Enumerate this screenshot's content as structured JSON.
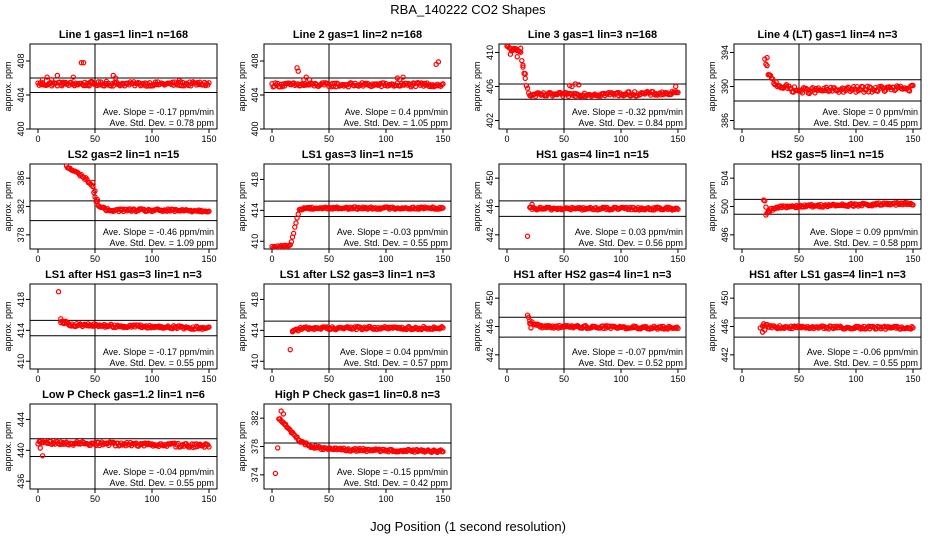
{
  "figure": {
    "title": "RBA_140222  CO2 Shapes",
    "xlabel": "Jog Position (1 second resolution)",
    "ylabel": "approx. ppm",
    "marker_color": "#ff0000"
  },
  "chart_data": [
    {
      "type": "scatter",
      "title": "Line 1 gas=1 lin=1 n=168",
      "xlim": [
        0,
        150
      ],
      "xticks": [
        0,
        50,
        100,
        150
      ],
      "ylim": [
        400,
        410
      ],
      "yticks": [
        400,
        404,
        408
      ],
      "hlines": [
        406.0,
        404.3
      ],
      "vline": 50,
      "slope_text": "Ave. Slope = -0.17  ppm/min",
      "std_text": "Ave. Std. Dev. = 0.78  ppm",
      "profile": {
        "settle": 405.3,
        "noise": 0.25,
        "trans": [
          [
            0,
            405.3
          ],
          [
            150,
            405.3
          ]
        ],
        "outliers": [
          [
            4,
            405.8
          ],
          [
            8,
            406.1
          ],
          [
            12,
            405.8
          ],
          [
            17,
            406.3
          ],
          [
            22,
            405.5
          ],
          [
            31,
            406.1
          ],
          [
            38,
            407.8
          ],
          [
            40,
            407.8
          ],
          [
            44,
            405.2
          ],
          [
            47,
            405.6
          ],
          [
            60,
            405.6
          ],
          [
            66,
            406.3
          ],
          [
            68,
            406.0
          ],
          [
            124,
            405.7
          ]
        ]
      }
    },
    {
      "type": "scatter",
      "title": "Line 2 gas=1 lin=2 n=168",
      "xlim": [
        0,
        150
      ],
      "xticks": [
        0,
        50,
        100,
        150
      ],
      "ylim": [
        400,
        410
      ],
      "yticks": [
        400,
        404,
        408
      ],
      "hlines": [
        406.0,
        404.3
      ],
      "vline": 50,
      "slope_text": "Ave. Slope = 0.4  ppm/min",
      "std_text": "Ave. Std. Dev. = 1.05  ppm",
      "profile": {
        "settle": 405.2,
        "noise": 0.25,
        "trans": [
          [
            0,
            405.2
          ],
          [
            150,
            405.2
          ]
        ],
        "outliers": [
          [
            22,
            407.2
          ],
          [
            23,
            406.8
          ],
          [
            28,
            405.8
          ],
          [
            30,
            406.1
          ],
          [
            33,
            405.8
          ],
          [
            110,
            406.0
          ],
          [
            112,
            405.8
          ],
          [
            115,
            406.1
          ],
          [
            144,
            407.6
          ],
          [
            146,
            407.9
          ]
        ]
      }
    },
    {
      "type": "scatter",
      "title": "Line 3 gas=1 lin=3 n=168",
      "xlim": [
        0,
        150
      ],
      "xticks": [
        0,
        50,
        100,
        150
      ],
      "ylim": [
        401,
        411
      ],
      "yticks": [
        402,
        406,
        410
      ],
      "hlines": [
        406.3,
        404.5
      ],
      "vline": 50,
      "slope_text": "Ave. Slope = -0.32  ppm/min",
      "std_text": "Ave. Std. Dev. = 0.84  ppm",
      "profile": {
        "settle": 405.2,
        "noise": 0.25,
        "trans": [
          [
            0,
            410.6
          ],
          [
            12,
            410.0
          ],
          [
            16,
            407.0
          ],
          [
            19,
            405.0
          ],
          [
            22,
            405.0
          ],
          [
            150,
            405.2
          ]
        ],
        "outliers": [
          [
            3,
            409.8
          ],
          [
            6,
            410.3
          ],
          [
            9,
            409.5
          ],
          [
            12,
            410.5
          ],
          [
            14,
            408.5
          ],
          [
            16,
            407.5
          ],
          [
            55,
            406.1
          ],
          [
            57,
            406.0
          ],
          [
            60,
            406.3
          ],
          [
            63,
            406.2
          ],
          [
            148,
            406.0
          ]
        ]
      }
    },
    {
      "type": "scatter",
      "title": "Line 4 (LT) gas=1 lin=4 n=3",
      "xlim": [
        0,
        150
      ],
      "xticks": [
        0,
        50,
        100,
        150
      ],
      "ylim": [
        385,
        395
      ],
      "yticks": [
        386,
        390,
        394
      ],
      "hlines": [
        390.8,
        388.3
      ],
      "vline": 50,
      "slope_text": "Ave. Slope = 0  ppm/min",
      "std_text": "Ave. Std. Dev. = 0.45  ppm",
      "profile": {
        "settle": 389.5,
        "noise": 0.35,
        "trans": [
          [
            20,
            393.0
          ],
          [
            24,
            391.2
          ],
          [
            28,
            390.5
          ],
          [
            35,
            390.0
          ],
          [
            50,
            389.5
          ],
          [
            150,
            389.8
          ]
        ],
        "outliers": [
          [
            22,
            393.4
          ]
        ]
      }
    },
    {
      "type": "scatter",
      "title": "LS2 gas=2 lin=1 n=15",
      "xlim": [
        0,
        150
      ],
      "xticks": [
        0,
        50,
        100,
        150
      ],
      "ylim": [
        376,
        388
      ],
      "yticks": [
        378,
        382,
        386
      ],
      "hlines": [
        382.8,
        380.0
      ],
      "vline": 50,
      "slope_text": "Ave. Slope = -0.46  ppm/min",
      "std_text": "Ave. Std. Dev. = 1.09  ppm",
      "profile": {
        "settle": 381.4,
        "noise": 0.2,
        "trans": [
          [
            25,
            387.6
          ],
          [
            38,
            386.4
          ],
          [
            44,
            385.6
          ],
          [
            48,
            384.8
          ],
          [
            50,
            383.2
          ],
          [
            54,
            382.0
          ],
          [
            60,
            381.5
          ],
          [
            150,
            381.4
          ]
        ],
        "outliers": [
          [
            48,
            385.4
          ],
          [
            50,
            384.2
          ],
          [
            52,
            383.0
          ]
        ]
      }
    },
    {
      "type": "scatter",
      "title": "LS1 gas=3 lin=1 n=15",
      "xlim": [
        0,
        150
      ],
      "xticks": [
        0,
        50,
        100,
        150
      ],
      "ylim": [
        409,
        420
      ],
      "yticks": [
        410,
        414,
        418
      ],
      "hlines": [
        415.2,
        413.2
      ],
      "vline": 50,
      "slope_text": "Ave. Slope = -0.03  ppm/min",
      "std_text": "Ave. Std. Dev. = 0.55  ppm",
      "profile": {
        "settle": 414.3,
        "noise": 0.15,
        "trans": [
          [
            0,
            409.2
          ],
          [
            16,
            409.4
          ],
          [
            18,
            410.5
          ],
          [
            21,
            412.5
          ],
          [
            24,
            414.0
          ],
          [
            28,
            414.3
          ],
          [
            150,
            414.3
          ]
        ],
        "outliers": []
      }
    },
    {
      "type": "scatter",
      "title": "HS1 gas=4 lin=1 n=15",
      "xlim": [
        0,
        150
      ],
      "xticks": [
        0,
        50,
        100,
        150
      ],
      "ylim": [
        440,
        452
      ],
      "yticks": [
        442,
        446,
        450
      ],
      "hlines": [
        446.8,
        444.6
      ],
      "vline": 50,
      "slope_text": "Ave. Slope = 0.03  ppm/min",
      "std_text": "Ave. Std. Dev. = 0.56  ppm",
      "profile": {
        "settle": 445.7,
        "noise": 0.2,
        "trans": [
          [
            20,
            445.7
          ],
          [
            150,
            445.7
          ]
        ],
        "outliers": [
          [
            18,
            441.8
          ],
          [
            22,
            446.3
          ]
        ]
      }
    },
    {
      "type": "scatter",
      "title": "HS2 gas=5 lin=1 n=15",
      "xlim": [
        0,
        150
      ],
      "xticks": [
        0,
        50,
        100,
        150
      ],
      "ylim": [
        494,
        506
      ],
      "yticks": [
        496,
        500,
        504
      ],
      "hlines": [
        501.0,
        498.9
      ],
      "vline": 50,
      "slope_text": "Ave. Slope = 0.09  ppm/min",
      "std_text": "Ave. Std. Dev. = 0.58  ppm",
      "profile": {
        "settle": 500.2,
        "noise": 0.2,
        "trans": [
          [
            20,
            500.6
          ],
          [
            22,
            499.0
          ],
          [
            25,
            499.5
          ],
          [
            35,
            500.0
          ],
          [
            150,
            500.4
          ]
        ],
        "outliers": [
          [
            19,
            500.9
          ],
          [
            21,
            498.8
          ],
          [
            23,
            499.3
          ]
        ]
      }
    },
    {
      "type": "scatter",
      "title": "LS1 after HS1 gas=3 lin=1 n=3",
      "xlim": [
        0,
        150
      ],
      "xticks": [
        0,
        50,
        100,
        150
      ],
      "ylim": [
        409,
        420
      ],
      "yticks": [
        410,
        414,
        418
      ],
      "hlines": [
        415.3,
        413.3
      ],
      "vline": 50,
      "slope_text": "Ave. Slope = -0.17  ppm/min",
      "std_text": "Ave. Std. Dev. = 0.55  ppm",
      "profile": {
        "settle": 414.4,
        "noise": 0.2,
        "trans": [
          [
            20,
            415.2
          ],
          [
            30,
            414.7
          ],
          [
            150,
            414.3
          ]
        ],
        "outliers": [
          [
            18,
            419.0
          ],
          [
            20,
            415.5
          ],
          [
            22,
            415.0
          ],
          [
            25,
            415.1
          ]
        ]
      }
    },
    {
      "type": "scatter",
      "title": "LS1 after LS2 gas=3 lin=1 n=3",
      "xlim": [
        0,
        150
      ],
      "xticks": [
        0,
        50,
        100,
        150
      ],
      "ylim": [
        409,
        420
      ],
      "yticks": [
        410,
        414,
        418
      ],
      "hlines": [
        415.2,
        413.2
      ],
      "vline": 50,
      "slope_text": "Ave. Slope = 0.04  ppm/min",
      "std_text": "Ave. Std. Dev. = 0.57  ppm",
      "profile": {
        "settle": 414.3,
        "noise": 0.2,
        "trans": [
          [
            18,
            414.0
          ],
          [
            30,
            414.3
          ],
          [
            150,
            414.3
          ]
        ],
        "outliers": [
          [
            16,
            411.5
          ],
          [
            18,
            413.9
          ]
        ]
      }
    },
    {
      "type": "scatter",
      "title": "HS1 after HS2 gas=4 lin=1 n=3",
      "xlim": [
        0,
        150
      ],
      "xticks": [
        0,
        50,
        100,
        150
      ],
      "ylim": [
        440,
        452
      ],
      "yticks": [
        442,
        446,
        450
      ],
      "hlines": [
        447.3,
        444.5
      ],
      "vline": 50,
      "slope_text": "Ave. Slope = -0.07  ppm/min",
      "std_text": "Ave. Std. Dev. = 0.52  ppm",
      "profile": {
        "settle": 445.8,
        "noise": 0.2,
        "trans": [
          [
            20,
            446.6
          ],
          [
            30,
            446.0
          ],
          [
            150,
            445.8
          ]
        ],
        "outliers": [
          [
            18,
            447.6
          ],
          [
            19,
            447.3
          ],
          [
            20,
            446.8
          ],
          [
            21,
            445.8
          ]
        ]
      }
    },
    {
      "type": "scatter",
      "title": "HS1 after LS1 gas=4 lin=1 n=3",
      "xlim": [
        0,
        150
      ],
      "xticks": [
        0,
        50,
        100,
        150
      ],
      "ylim": [
        440,
        452
      ],
      "yticks": [
        442,
        446,
        450
      ],
      "hlines": [
        447.2,
        444.5
      ],
      "vline": 50,
      "slope_text": "Ave. Slope = -0.06  ppm/min",
      "std_text": "Ave. Std. Dev. = 0.55  ppm",
      "profile": {
        "settle": 445.8,
        "noise": 0.2,
        "trans": [
          [
            18,
            446.2
          ],
          [
            30,
            445.9
          ],
          [
            150,
            445.8
          ]
        ],
        "outliers": [
          [
            16,
            445.8
          ],
          [
            18,
            445.2
          ],
          [
            20,
            445.5
          ]
        ]
      }
    },
    {
      "type": "scatter",
      "title": "Low P Check gas=1.2 lin=1 n=6",
      "xlim": [
        0,
        150
      ],
      "xticks": [
        0,
        50,
        100,
        150
      ],
      "ylim": [
        435,
        446
      ],
      "yticks": [
        436,
        440,
        444
      ],
      "hlines": [
        441.5,
        439.2
      ],
      "vline": 50,
      "slope_text": "Ave. Slope = -0.04  ppm/min",
      "std_text": "Ave. Std. Dev. = 0.55  ppm",
      "profile": {
        "settle": 440.8,
        "noise": 0.25,
        "trans": [
          [
            0,
            441.0
          ],
          [
            80,
            440.8
          ],
          [
            150,
            440.6
          ]
        ],
        "outliers": [
          [
            2,
            440.3
          ],
          [
            4,
            439.3
          ]
        ]
      }
    },
    {
      "type": "scatter",
      "title": "High P Check gas=1 lin=0.8 n=3",
      "xlim": [
        0,
        150
      ],
      "xticks": [
        0,
        50,
        100,
        150
      ],
      "ylim": [
        372,
        384
      ],
      "yticks": [
        374,
        378,
        382
      ],
      "hlines": [
        378.5,
        376.4
      ],
      "vline": 50,
      "slope_text": "Ave. Slope = -0.15  ppm/min",
      "std_text": "Ave. Std. Dev. = 0.42  ppm",
      "profile": {
        "settle": 377.4,
        "noise": 0.2,
        "trans": [
          [
            6,
            382.0
          ],
          [
            10,
            381.5
          ],
          [
            14,
            380.5
          ],
          [
            20,
            379.5
          ],
          [
            26,
            378.6
          ],
          [
            35,
            378.0
          ],
          [
            50,
            377.6
          ],
          [
            150,
            377.3
          ]
        ],
        "outliers": [
          [
            3,
            374.2
          ],
          [
            5,
            377.8
          ],
          [
            8,
            383.0
          ],
          [
            10,
            382.6
          ]
        ]
      }
    }
  ]
}
